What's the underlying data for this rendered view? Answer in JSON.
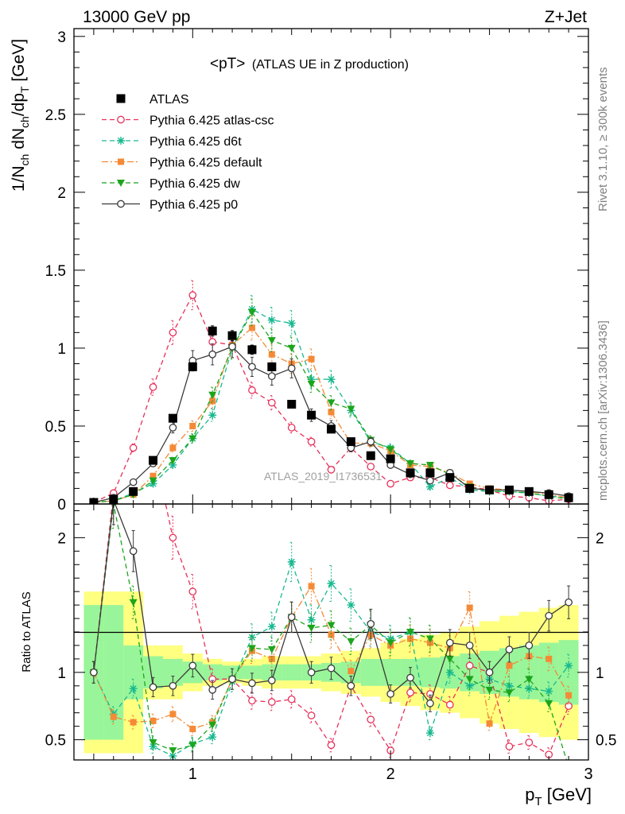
{
  "header": {
    "left": "13000 GeV pp",
    "right": "Z+Jet"
  },
  "side_labels": {
    "rivet": "Rivet 3.1.10, ≥ 300k events",
    "mcplots": "mcplots.cern.ch [arXiv:1306.3436]"
  },
  "chart_data": {
    "type": "scatter",
    "title": "<pT> (ATLAS UE in Z production)",
    "title_main": "<pT>",
    "title_sub": "(ATLAS UE in Z production)",
    "watermark": "ATLAS_2019_I1736531",
    "xlabel": "p_T [GeV]",
    "ylabel": "1/N_ch dN_ch/dp_T [GeV]",
    "ratio_ylabel": "Ratio to ATLAS",
    "xlim": [
      0.4,
      3.0
    ],
    "ylim": [
      0,
      3.05
    ],
    "ratio_ylim": [
      0.35,
      2.25
    ],
    "x_ticks": [
      1,
      2,
      3
    ],
    "y_ticks": [
      0,
      0.5,
      1,
      1.5,
      2,
      2.5,
      3
    ],
    "ratio_y_ticks": [
      0.5,
      1,
      2
    ],
    "legend_placement": "top-left",
    "x": [
      0.5,
      0.6,
      0.7,
      0.8,
      0.9,
      1.0,
      1.1,
      1.2,
      1.3,
      1.4,
      1.5,
      1.6,
      1.7,
      1.8,
      1.9,
      2.0,
      2.1,
      2.2,
      2.3,
      2.4,
      2.5,
      2.6,
      2.7,
      2.8,
      2.9
    ],
    "data": {
      "name": "ATLAS",
      "values": [
        0.01,
        0.03,
        0.08,
        0.28,
        0.55,
        0.88,
        1.11,
        1.08,
        0.99,
        0.88,
        0.64,
        0.57,
        0.48,
        0.4,
        0.31,
        0.29,
        0.2,
        0.2,
        0.17,
        0.1,
        0.09,
        0.09,
        0.08,
        0.06,
        0.04
      ],
      "band_inner": [
        0.5,
        0.5,
        0.2,
        0.12,
        0.1,
        0.08,
        0.06,
        0.05,
        0.05,
        0.06,
        0.06,
        0.06,
        0.07,
        0.08,
        0.1,
        0.1,
        0.1,
        0.11,
        0.12,
        0.14,
        0.16,
        0.18,
        0.2,
        0.22,
        0.24
      ],
      "band_outer": [
        0.6,
        0.6,
        0.6,
        0.2,
        0.2,
        0.14,
        0.1,
        0.08,
        0.1,
        0.12,
        0.12,
        0.12,
        0.14,
        0.16,
        0.18,
        0.22,
        0.25,
        0.28,
        0.3,
        0.34,
        0.38,
        0.42,
        0.45,
        0.48,
        0.5
      ]
    },
    "series": [
      {
        "name": "Pythia 6.425 atlas-csc",
        "color": "#e8305a",
        "marker": "circle-open",
        "dash": "6,4",
        "values": [
          0.01,
          0.07,
          0.36,
          0.75,
          1.1,
          1.34,
          1.04,
          1.02,
          0.73,
          0.65,
          0.49,
          0.4,
          0.22,
          0.36,
          0.24,
          0.13,
          0.17,
          0.17,
          0.12,
          0.11,
          0.09,
          0.05,
          0.04,
          0.02,
          0.03
        ],
        "ratio": [
          1.0,
          2.33,
          4.5,
          2.68,
          2.0,
          1.6,
          0.95,
          0.95,
          0.79,
          0.78,
          0.8,
          0.68,
          0.46,
          0.9,
          0.65,
          0.42,
          0.85,
          0.84,
          0.76,
          1.05,
          1.0,
          0.45,
          0.48,
          0.39,
          0.75
        ]
      },
      {
        "name": "Pythia 6.425 d6t",
        "color": "#17b890",
        "marker": "asterisk",
        "dash": "6,4",
        "values": [
          0.01,
          0.02,
          0.07,
          0.13,
          0.25,
          0.42,
          0.57,
          1.0,
          1.25,
          1.18,
          1.16,
          0.8,
          0.8,
          0.6,
          0.4,
          0.36,
          0.26,
          0.11,
          0.17,
          0.09,
          0.08,
          0.08,
          0.07,
          0.05,
          0.04
        ],
        "ratio": [
          1.0,
          0.69,
          0.88,
          0.45,
          0.38,
          0.47,
          0.52,
          0.93,
          1.26,
          1.34,
          1.82,
          1.39,
          1.66,
          1.5,
          1.3,
          1.25,
          1.3,
          0.55,
          1.0,
          0.9,
          0.95,
          0.9,
          0.88,
          0.86,
          1.05
        ]
      },
      {
        "name": "Pythia 6.425 default",
        "color": "#f58a36",
        "marker": "square",
        "dash": "8,3,2,3",
        "values": [
          0.01,
          0.02,
          0.06,
          0.18,
          0.36,
          0.5,
          0.66,
          1.02,
          1.13,
          0.96,
          0.9,
          0.93,
          0.59,
          0.39,
          0.39,
          0.34,
          0.25,
          0.24,
          0.2,
          0.13,
          0.1,
          0.09,
          0.08,
          0.06,
          0.04
        ],
        "ratio": [
          1.0,
          0.67,
          0.63,
          0.64,
          0.69,
          0.58,
          0.63,
          0.95,
          1.16,
          1.1,
          1.41,
          1.64,
          1.28,
          1.01,
          1.28,
          1.2,
          1.25,
          1.22,
          1.18,
          1.48,
          0.62,
          1.05,
          1.12,
          1.1,
          0.83
        ]
      },
      {
        "name": "Pythia 6.425 dw",
        "color": "#1ca51c",
        "marker": "triangle-down",
        "dash": "6,4",
        "values": [
          0.01,
          0.02,
          0.06,
          0.15,
          0.28,
          0.42,
          0.7,
          1.0,
          1.23,
          1.05,
          1.0,
          0.77,
          0.65,
          0.61,
          0.41,
          0.35,
          0.26,
          0.25,
          0.19,
          0.11,
          0.08,
          0.08,
          0.07,
          0.05,
          0.03
        ],
        "ratio": [
          1.0,
          2.25,
          1.52,
          0.48,
          0.42,
          0.46,
          0.61,
          0.95,
          1.18,
          1.17,
          1.41,
          1.33,
          1.35,
          1.23,
          1.35,
          1.22,
          1.3,
          1.25,
          1.1,
          0.95,
          0.87,
          0.85,
          0.95,
          0.77,
          0.3
        ]
      },
      {
        "name": "Pythia 6.425 p0",
        "color": "#3a3a3a",
        "marker": "circle-open",
        "dash": "",
        "values": [
          0.01,
          0.04,
          0.14,
          0.26,
          0.49,
          0.92,
          0.96,
          1.01,
          0.88,
          0.82,
          0.87,
          0.57,
          0.5,
          0.36,
          0.4,
          0.25,
          0.19,
          0.15,
          0.2,
          0.1,
          0.09,
          0.09,
          0.08,
          0.07,
          0.05
        ],
        "ratio": [
          1.0,
          2.28,
          1.9,
          0.89,
          0.9,
          1.05,
          0.87,
          0.95,
          0.92,
          0.94,
          1.41,
          1.0,
          1.03,
          0.9,
          1.36,
          0.84,
          0.96,
          0.77,
          1.22,
          1.2,
          1.0,
          1.17,
          1.2,
          1.42,
          1.52
        ]
      }
    ]
  }
}
